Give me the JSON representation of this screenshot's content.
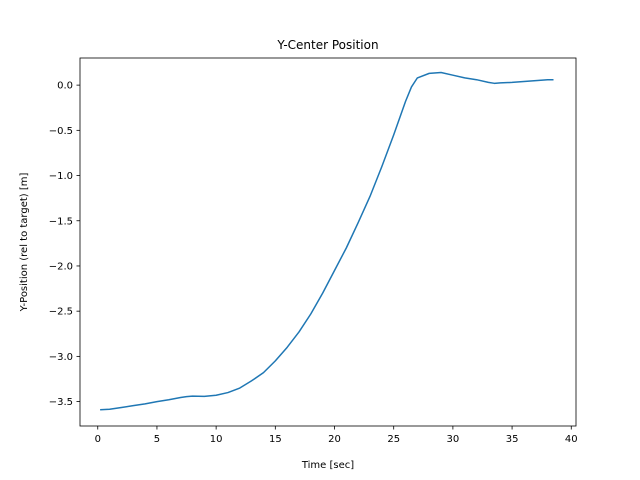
{
  "chart_data": {
    "type": "line",
    "title": "Y-Center Position",
    "xlabel": "Time [sec]",
    "ylabel": "Y-Position (rel to target) [m]",
    "xlim": [
      -1.5,
      40.4
    ],
    "ylim": [
      -3.77,
      0.3
    ],
    "x_ticks": [
      0,
      5,
      10,
      15,
      20,
      25,
      30,
      35,
      40
    ],
    "x_tick_labels": [
      "0",
      "5",
      "10",
      "15",
      "20",
      "25",
      "30",
      "35",
      "40"
    ],
    "y_ticks": [
      0.0,
      -0.5,
      -1.0,
      -1.5,
      -2.0,
      -2.5,
      -3.0,
      -3.5
    ],
    "y_tick_labels": [
      "0.0",
      "−0.5",
      "−1.0",
      "−1.5",
      "−2.0",
      "−2.5",
      "−3.0",
      "−3.5"
    ],
    "grid": false,
    "series": [
      {
        "color": "#1f77b4",
        "x": [
          0.2,
          1,
          2,
          3,
          4,
          5,
          6,
          7,
          7.5,
          8,
          9,
          10,
          11,
          12,
          13,
          14,
          15,
          16,
          17,
          18,
          19,
          20,
          21,
          22,
          23,
          24,
          25,
          26,
          26.5,
          27,
          28,
          29,
          30,
          31,
          32,
          33,
          33.5,
          34,
          35,
          36,
          37,
          38,
          38.5
        ],
        "y": [
          -3.59,
          -3.585,
          -3.565,
          -3.545,
          -3.525,
          -3.5,
          -3.48,
          -3.455,
          -3.445,
          -3.44,
          -3.442,
          -3.43,
          -3.4,
          -3.35,
          -3.27,
          -3.18,
          -3.05,
          -2.9,
          -2.73,
          -2.53,
          -2.3,
          -2.05,
          -1.8,
          -1.52,
          -1.23,
          -0.9,
          -0.55,
          -0.18,
          -0.02,
          0.08,
          0.13,
          0.14,
          0.11,
          0.08,
          0.06,
          0.03,
          0.02,
          0.025,
          0.03,
          0.04,
          0.05,
          0.06,
          0.06
        ]
      }
    ]
  }
}
